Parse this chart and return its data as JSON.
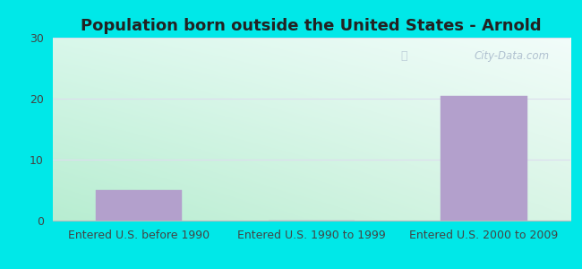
{
  "title": "Population born outside the United States - Arnold",
  "categories": [
    "Entered U.S. before 1990",
    "Entered U.S. 1990 to 1999",
    "Entered U.S. 2000 to 2009"
  ],
  "values": [
    5,
    0,
    20.5
  ],
  "bar_color": "#b3a0cc",
  "bar_edgecolor": "#b3a0cc",
  "ylim": [
    0,
    30
  ],
  "yticks": [
    0,
    10,
    20,
    30
  ],
  "outer_bg": "#00e8e8",
  "gradient_topleft": "#cceedd",
  "gradient_topright": "#eef8f8",
  "gradient_bottomleft": "#aaddcc",
  "gradient_bottomright": "#ddeedd",
  "title_fontsize": 13,
  "tick_fontsize": 9,
  "watermark_text": "City-Data.com",
  "watermark_color": "#aabbcc",
  "grid_color": "#ddddee"
}
